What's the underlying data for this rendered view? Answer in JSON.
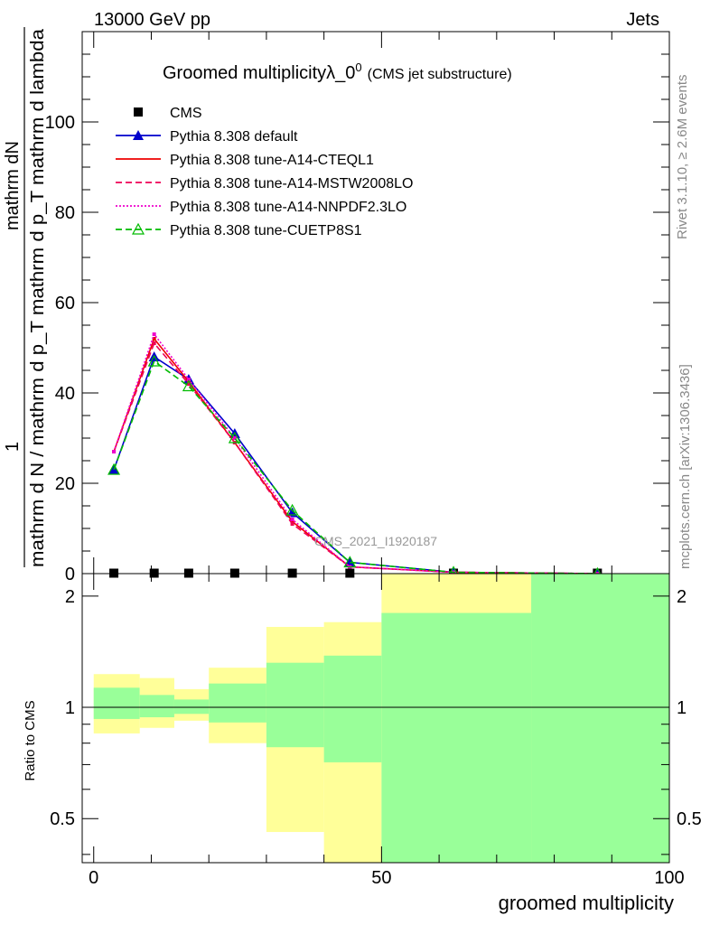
{
  "header": {
    "left": "13000 GeV pp",
    "right": "Jets"
  },
  "side_labels": {
    "rivet": "Rivet 3.1.10, ≥ 2.6M events",
    "mcplots": "mcplots.cern.ch [arXiv:1306.3436]"
  },
  "watermark": "CMS_2021_I1920187",
  "chart_data": [
    {
      "type": "line",
      "title": "Groomed multiplicityλ_0",
      "title_superscript": "0",
      "subtitle": "(CMS jet substructure)",
      "ylabel_top": "1",
      "ylabel_mid": "mathrm dN",
      "ylabel_bottom": "mathrm d N / mathrm d p_T mathrm d p_T mathrm d lambda",
      "ylim": [
        0,
        120
      ],
      "xlim": [
        -2,
        100
      ],
      "yticks": [
        0,
        20,
        40,
        60,
        80,
        100
      ],
      "legend_position": "top-left",
      "x": [
        3.5,
        10.5,
        16.5,
        24.5,
        34.5,
        44.5,
        62.5,
        87.5
      ],
      "series": [
        {
          "name": "CMS",
          "color": "#000000",
          "marker": "square",
          "style": "points",
          "values": [
            0.1,
            0.1,
            0.1,
            0.1,
            0.1,
            0.1,
            0.1,
            0.1
          ]
        },
        {
          "name": "Pythia 8.308 default",
          "color": "#0000cc",
          "marker": "triangle",
          "style": "solid",
          "values": [
            23,
            48,
            43,
            31,
            13.5,
            2.5,
            0.3,
            0
          ]
        },
        {
          "name": "Pythia 8.308 tune-A14-CTEQL1",
          "color": "#ee0000",
          "marker": "none",
          "style": "solid",
          "values": [
            27,
            52,
            42.5,
            29,
            11.5,
            1.5,
            0.3,
            0
          ]
        },
        {
          "name": "Pythia 8.308 tune-A14-MSTW2008LO",
          "color": "#ee0055",
          "marker": "none",
          "style": "dashed",
          "values": [
            27,
            51,
            42,
            29,
            11,
            1.5,
            0.3,
            0
          ]
        },
        {
          "name": "Pythia 8.308 tune-A14-NNPDF2.3LO",
          "color": "#ee00cc",
          "marker": "none",
          "style": "dotted",
          "values": [
            27,
            53,
            43,
            30,
            12,
            1.5,
            0.3,
            0
          ]
        },
        {
          "name": "Pythia 8.308 tune-CUETP8S1",
          "color": "#00bb00",
          "marker": "open-triangle",
          "style": "dashed",
          "values": [
            23,
            47,
            41.5,
            30,
            14,
            2.5,
            0.3,
            0
          ]
        }
      ]
    },
    {
      "type": "area",
      "ylabel": "Ratio to CMS",
      "xlabel": "groomed multiplicity",
      "ylim": [
        0.38,
        2.3
      ],
      "xlim": [
        -2,
        100
      ],
      "xticks": [
        0,
        50,
        100
      ],
      "yticks": [
        0.5,
        1,
        2
      ],
      "reference_line": 1,
      "bins": [
        {
          "x0": 0,
          "x1": 8,
          "inner": [
            0.93,
            1.13
          ],
          "outer": [
            0.85,
            1.23
          ]
        },
        {
          "x0": 8,
          "x1": 14,
          "inner": [
            0.94,
            1.08
          ],
          "outer": [
            0.88,
            1.2
          ]
        },
        {
          "x0": 14,
          "x1": 20,
          "inner": [
            0.96,
            1.05
          ],
          "outer": [
            0.92,
            1.12
          ]
        },
        {
          "x0": 20,
          "x1": 30,
          "inner": [
            0.91,
            1.16
          ],
          "outer": [
            0.8,
            1.28
          ]
        },
        {
          "x0": 30,
          "x1": 40,
          "inner": [
            0.78,
            1.32
          ],
          "outer": [
            0.46,
            1.65
          ]
        },
        {
          "x0": 40,
          "x1": 50,
          "inner": [
            0.71,
            1.38
          ],
          "outer": [
            0.38,
            1.7
          ]
        },
        {
          "x0": 50,
          "x1": 76,
          "inner": [
            0.38,
            1.8
          ],
          "outer": [
            0.38,
            2.3
          ]
        },
        {
          "x0": 76,
          "x1": 100,
          "inner": [
            0.38,
            2.3
          ],
          "outer": [
            0.38,
            2.3
          ]
        }
      ],
      "band_colors": {
        "inner": "#99ff99",
        "outer": "#ffff99"
      }
    }
  ]
}
